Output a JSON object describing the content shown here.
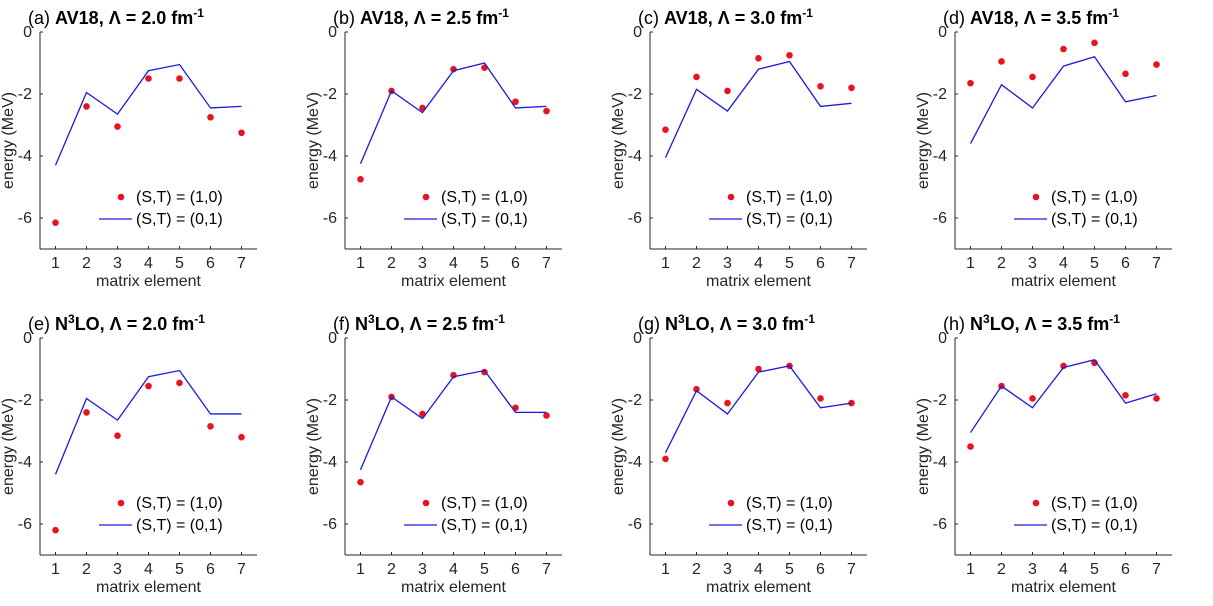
{
  "chart_data": [
    {
      "type": "line",
      "title_prefix": "(a) ",
      "title_bold": "AV18, Λ = 2.0 fm",
      "title_sup": "-1",
      "xlabel": "matrix element",
      "ylabel": "energy (MeV)",
      "xlim": [
        0.5,
        7.5
      ],
      "ylim": [
        -7,
        0
      ],
      "x_ticks": [
        "1",
        "2",
        "3",
        "4",
        "5",
        "6",
        "7"
      ],
      "y_ticks": [
        "0",
        "-2",
        "-4",
        "-6"
      ],
      "x": [
        1,
        2,
        3,
        4,
        5,
        6,
        7
      ],
      "series": [
        {
          "name": "(S,T) = (1,0)",
          "style": "markers",
          "color": "#e8141c",
          "values": [
            -6.15,
            -2.4,
            -3.05,
            -1.5,
            -1.5,
            -2.75,
            -3.25
          ]
        },
        {
          "name": "(S,T) = (0,1)",
          "style": "line",
          "color": "#1a1adb",
          "values": [
            -4.3,
            -1.95,
            -2.65,
            -1.25,
            -1.05,
            -2.45,
            -2.4
          ]
        }
      ],
      "legend": "bottom-right"
    },
    {
      "type": "line",
      "title_prefix": "(b) ",
      "title_bold": "AV18, Λ = 2.5 fm",
      "title_sup": "-1",
      "xlabel": "matrix element",
      "ylabel": "energy (MeV)",
      "xlim": [
        0.5,
        7.5
      ],
      "ylim": [
        -7,
        0
      ],
      "x_ticks": [
        "1",
        "2",
        "3",
        "4",
        "5",
        "6",
        "7"
      ],
      "y_ticks": [
        "0",
        "-2",
        "-4",
        "-6"
      ],
      "x": [
        1,
        2,
        3,
        4,
        5,
        6,
        7
      ],
      "series": [
        {
          "name": "(S,T) = (1,0)",
          "style": "markers",
          "color": "#e8141c",
          "values": [
            -4.75,
            -1.9,
            -2.45,
            -1.2,
            -1.15,
            -2.25,
            -2.55
          ]
        },
        {
          "name": "(S,T) = (0,1)",
          "style": "line",
          "color": "#1a1adb",
          "values": [
            -4.25,
            -1.9,
            -2.6,
            -1.25,
            -1.0,
            -2.45,
            -2.4
          ]
        }
      ],
      "legend": "bottom-right"
    },
    {
      "type": "line",
      "title_prefix": "(c) ",
      "title_bold": "AV18, Λ = 3.0 fm",
      "title_sup": "-1",
      "xlabel": "matrix element",
      "ylabel": "energy (MeV)",
      "xlim": [
        0.5,
        7.5
      ],
      "ylim": [
        -7,
        0
      ],
      "x_ticks": [
        "1",
        "2",
        "3",
        "4",
        "5",
        "6",
        "7"
      ],
      "y_ticks": [
        "0",
        "-2",
        "-4",
        "-6"
      ],
      "x": [
        1,
        2,
        3,
        4,
        5,
        6,
        7
      ],
      "series": [
        {
          "name": "(S,T) = (1,0)",
          "style": "markers",
          "color": "#e8141c",
          "values": [
            -3.15,
            -1.45,
            -1.9,
            -0.85,
            -0.75,
            -1.75,
            -1.8
          ]
        },
        {
          "name": "(S,T) = (0,1)",
          "style": "line",
          "color": "#1a1adb",
          "values": [
            -4.05,
            -1.85,
            -2.55,
            -1.2,
            -0.95,
            -2.4,
            -2.3
          ]
        }
      ],
      "legend": "bottom-right"
    },
    {
      "type": "line",
      "title_prefix": "(d) ",
      "title_bold": "AV18, Λ = 3.5 fm",
      "title_sup": "-1",
      "xlabel": "matrix element",
      "ylabel": "energy (MeV)",
      "xlim": [
        0.5,
        7.5
      ],
      "ylim": [
        -7,
        0
      ],
      "x_ticks": [
        "1",
        "2",
        "3",
        "4",
        "5",
        "6",
        "7"
      ],
      "y_ticks": [
        "0",
        "-2",
        "-4",
        "-6"
      ],
      "x": [
        1,
        2,
        3,
        4,
        5,
        6,
        7
      ],
      "series": [
        {
          "name": "(S,T) = (1,0)",
          "style": "markers",
          "color": "#e8141c",
          "values": [
            -1.65,
            -0.95,
            -1.45,
            -0.55,
            -0.35,
            -1.35,
            -1.05
          ]
        },
        {
          "name": "(S,T) = (0,1)",
          "style": "line",
          "color": "#1a1adb",
          "values": [
            -3.6,
            -1.7,
            -2.45,
            -1.1,
            -0.8,
            -2.25,
            -2.05
          ]
        }
      ],
      "legend": "bottom-right"
    },
    {
      "type": "line",
      "title_prefix": "(e) ",
      "title_bold": "N",
      "title_bold_sup": "3",
      "title_bold_rest": "LO, Λ = 2.0 fm",
      "title_sup": "-1",
      "xlabel": "matrix element",
      "ylabel": "energy (MeV)",
      "xlim": [
        0.5,
        7.5
      ],
      "ylim": [
        -7,
        0
      ],
      "x_ticks": [
        "1",
        "2",
        "3",
        "4",
        "5",
        "6",
        "7"
      ],
      "y_ticks": [
        "0",
        "-2",
        "-4",
        "-6"
      ],
      "x": [
        1,
        2,
        3,
        4,
        5,
        6,
        7
      ],
      "series": [
        {
          "name": "(S,T) = (1,0)",
          "style": "markers",
          "color": "#e8141c",
          "values": [
            -6.2,
            -2.4,
            -3.15,
            -1.55,
            -1.45,
            -2.85,
            -3.2
          ]
        },
        {
          "name": "(S,T) = (0,1)",
          "style": "line",
          "color": "#1a1adb",
          "values": [
            -4.4,
            -1.95,
            -2.65,
            -1.25,
            -1.05,
            -2.45,
            -2.45
          ]
        }
      ],
      "legend": "bottom-right"
    },
    {
      "type": "line",
      "title_prefix": "(f) ",
      "title_bold": "N",
      "title_bold_sup": "3",
      "title_bold_rest": "LO, Λ = 2.5 fm",
      "title_sup": "-1",
      "xlabel": "matrix element",
      "ylabel": "energy (MeV)",
      "xlim": [
        0.5,
        7.5
      ],
      "ylim": [
        -7,
        0
      ],
      "x_ticks": [
        "1",
        "2",
        "3",
        "4",
        "5",
        "6",
        "7"
      ],
      "y_ticks": [
        "0",
        "-2",
        "-4",
        "-6"
      ],
      "x": [
        1,
        2,
        3,
        4,
        5,
        6,
        7
      ],
      "series": [
        {
          "name": "(S,T) = (1,0)",
          "style": "markers",
          "color": "#e8141c",
          "values": [
            -4.65,
            -1.9,
            -2.45,
            -1.2,
            -1.1,
            -2.25,
            -2.5
          ]
        },
        {
          "name": "(S,T) = (0,1)",
          "style": "line",
          "color": "#1a1adb",
          "values": [
            -4.25,
            -1.9,
            -2.6,
            -1.25,
            -1.05,
            -2.4,
            -2.4
          ]
        }
      ],
      "legend": "bottom-right"
    },
    {
      "type": "line",
      "title_prefix": "(g) ",
      "title_bold": "N",
      "title_bold_sup": "3",
      "title_bold_rest": "LO, Λ = 3.0 fm",
      "title_sup": "-1",
      "xlabel": "matrix element",
      "ylabel": "energy (MeV)",
      "xlim": [
        0.5,
        7.5
      ],
      "ylim": [
        -7,
        0
      ],
      "x_ticks": [
        "1",
        "2",
        "3",
        "4",
        "5",
        "6",
        "7"
      ],
      "y_ticks": [
        "0",
        "-2",
        "-4",
        "-6"
      ],
      "x": [
        1,
        2,
        3,
        4,
        5,
        6,
        7
      ],
      "series": [
        {
          "name": "(S,T) = (1,0)",
          "style": "markers",
          "color": "#e8141c",
          "values": [
            -3.9,
            -1.65,
            -2.1,
            -1.0,
            -0.9,
            -1.95,
            -2.1
          ]
        },
        {
          "name": "(S,T) = (0,1)",
          "style": "line",
          "color": "#1a1adb",
          "values": [
            -3.7,
            -1.7,
            -2.45,
            -1.1,
            -0.9,
            -2.25,
            -2.1
          ]
        }
      ],
      "legend": "bottom-right"
    },
    {
      "type": "line",
      "title_prefix": "(h) ",
      "title_bold": "N",
      "title_bold_sup": "3",
      "title_bold_rest": "LO, Λ = 3.5 fm",
      "title_sup": "-1",
      "xlabel": "matrix element",
      "ylabel": "energy (MeV)",
      "xlim": [
        0.5,
        7.5
      ],
      "ylim": [
        -7,
        0
      ],
      "x_ticks": [
        "1",
        "2",
        "3",
        "4",
        "5",
        "6",
        "7"
      ],
      "y_ticks": [
        "0",
        "-2",
        "-4",
        "-6"
      ],
      "x": [
        1,
        2,
        3,
        4,
        5,
        6,
        7
      ],
      "series": [
        {
          "name": "(S,T) = (1,0)",
          "style": "markers",
          "color": "#e8141c",
          "values": [
            -3.5,
            -1.55,
            -1.95,
            -0.9,
            -0.8,
            -1.85,
            -1.95
          ]
        },
        {
          "name": "(S,T) = (0,1)",
          "style": "line",
          "color": "#1a1adb",
          "values": [
            -3.05,
            -1.55,
            -2.25,
            -0.95,
            -0.7,
            -2.1,
            -1.8
          ]
        }
      ],
      "legend": "bottom-right"
    }
  ]
}
